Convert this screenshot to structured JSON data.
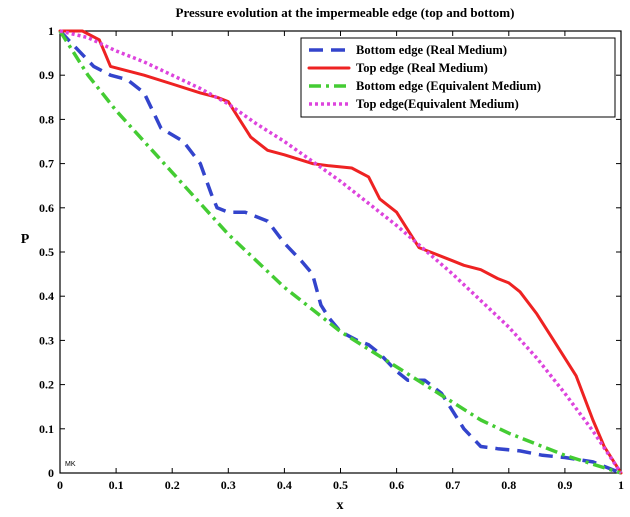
{
  "chart_data": {
    "type": "line",
    "title": "Pressure evolution at the impermeable edge (top and bottom)",
    "xlabel": "x",
    "ylabel": "P",
    "xlim": [
      0,
      1
    ],
    "ylim": [
      0,
      1
    ],
    "xticks": [
      "0",
      "0.1",
      "0.2",
      "0.3",
      "0.4",
      "0.5",
      "0.6",
      "0.7",
      "0.8",
      "0.9",
      "1"
    ],
    "yticks": [
      "0",
      "0.1",
      "0.2",
      "0.3",
      "0.4",
      "0.5",
      "0.6",
      "0.7",
      "0.8",
      "0.9",
      "1"
    ],
    "grid": false,
    "legend_position": "top-right",
    "corner_mark": "MK",
    "series": [
      {
        "name": "Bottom edge (Real Medium)",
        "color": "#3344cc",
        "style": "dashed",
        "x": [
          0,
          0.03,
          0.06,
          0.09,
          0.12,
          0.15,
          0.18,
          0.22,
          0.25,
          0.27,
          0.28,
          0.3,
          0.33,
          0.37,
          0.4,
          0.43,
          0.45,
          0.465,
          0.48,
          0.5,
          0.53,
          0.55,
          0.57,
          0.6,
          0.62,
          0.65,
          0.68,
          0.7,
          0.72,
          0.75,
          0.78,
          0.82,
          0.86,
          0.9,
          0.95,
          1.0
        ],
        "y": [
          1.0,
          0.96,
          0.92,
          0.9,
          0.89,
          0.86,
          0.78,
          0.75,
          0.7,
          0.63,
          0.6,
          0.59,
          0.59,
          0.57,
          0.52,
          0.48,
          0.45,
          0.38,
          0.35,
          0.32,
          0.3,
          0.29,
          0.27,
          0.23,
          0.21,
          0.21,
          0.18,
          0.14,
          0.1,
          0.06,
          0.055,
          0.05,
          0.04,
          0.035,
          0.025,
          0.0
        ]
      },
      {
        "name": "Top edge (Real Medium)",
        "color": "#ee2222",
        "style": "solid",
        "x": [
          0,
          0.04,
          0.07,
          0.08,
          0.09,
          0.12,
          0.15,
          0.2,
          0.25,
          0.28,
          0.3,
          0.32,
          0.34,
          0.37,
          0.4,
          0.45,
          0.48,
          0.52,
          0.55,
          0.57,
          0.6,
          0.62,
          0.64,
          0.66,
          0.7,
          0.72,
          0.75,
          0.78,
          0.8,
          0.82,
          0.85,
          0.88,
          0.92,
          0.95,
          0.97,
          0.99,
          1.0
        ],
        "y": [
          1.0,
          1.0,
          0.98,
          0.95,
          0.92,
          0.91,
          0.9,
          0.88,
          0.86,
          0.85,
          0.84,
          0.8,
          0.76,
          0.73,
          0.72,
          0.7,
          0.695,
          0.69,
          0.67,
          0.62,
          0.59,
          0.55,
          0.51,
          0.5,
          0.48,
          0.47,
          0.46,
          0.44,
          0.43,
          0.41,
          0.36,
          0.3,
          0.22,
          0.12,
          0.06,
          0.02,
          0.0
        ]
      },
      {
        "name": "Bottom edge (Equivalent Medium)",
        "color": "#44cc33",
        "style": "dashdot",
        "x": [
          0,
          0.05,
          0.1,
          0.15,
          0.2,
          0.25,
          0.3,
          0.35,
          0.4,
          0.45,
          0.5,
          0.55,
          0.6,
          0.65,
          0.7,
          0.75,
          0.8,
          0.85,
          0.9,
          0.95,
          1.0
        ],
        "y": [
          1.0,
          0.9,
          0.82,
          0.75,
          0.68,
          0.61,
          0.54,
          0.48,
          0.42,
          0.37,
          0.32,
          0.28,
          0.24,
          0.2,
          0.16,
          0.12,
          0.09,
          0.065,
          0.04,
          0.02,
          0.0
        ]
      },
      {
        "name": "Top edge(Equivalent Medium)",
        "color": "#dd44dd",
        "style": "dotted",
        "x": [
          0,
          0.05,
          0.1,
          0.15,
          0.2,
          0.25,
          0.3,
          0.35,
          0.4,
          0.45,
          0.5,
          0.55,
          0.6,
          0.65,
          0.7,
          0.75,
          0.8,
          0.85,
          0.9,
          0.95,
          1.0
        ],
        "y": [
          1.0,
          0.985,
          0.955,
          0.93,
          0.9,
          0.87,
          0.835,
          0.79,
          0.75,
          0.705,
          0.66,
          0.61,
          0.56,
          0.505,
          0.45,
          0.39,
          0.33,
          0.26,
          0.18,
          0.095,
          0.0
        ]
      }
    ]
  }
}
